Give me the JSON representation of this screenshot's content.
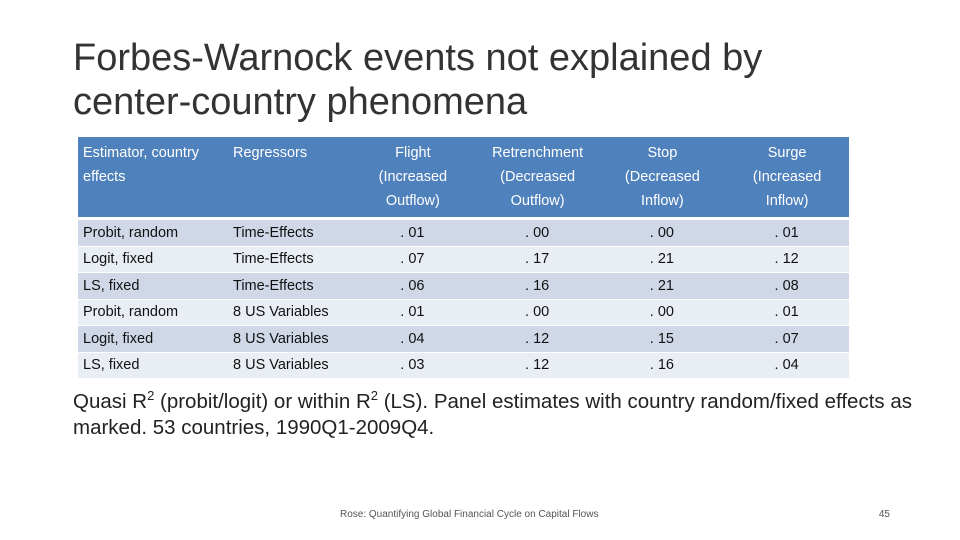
{
  "slide": {
    "title_line1": "Forbes-Warnock events not explained by",
    "title_line2": "center-country phenomena",
    "footer": "Rose: Quantifying Global Financial Cycle on Capital Flows",
    "page_number": "45"
  },
  "table": {
    "headers": [
      {
        "line1": "Estimator, country",
        "line2": "effects",
        "line3": ""
      },
      {
        "line1": "Regressors",
        "line2": "",
        "line3": ""
      },
      {
        "line1": "Flight",
        "line2": "(Increased",
        "line3": "Outflow)"
      },
      {
        "line1": "Retrenchment",
        "line2": "(Decreased",
        "line3": "Outflow)"
      },
      {
        "line1": "Stop",
        "line2": "(Decreased",
        "line3": "Inflow)"
      },
      {
        "line1": "Surge",
        "line2": "(Increased",
        "line3": "Inflow)"
      }
    ],
    "rows": [
      {
        "estimator": "Probit, random",
        "regressors": "Time-Effects",
        "flight": ". 01",
        "retrenchment": ". 00",
        "stop": ". 00",
        "surge": ". 01"
      },
      {
        "estimator": "Logit, fixed",
        "regressors": "Time-Effects",
        "flight": ". 07",
        "retrenchment": ". 17",
        "stop": ". 21",
        "surge": ". 12"
      },
      {
        "estimator": "LS, fixed",
        "regressors": "Time-Effects",
        "flight": ". 06",
        "retrenchment": ". 16",
        "stop": ". 21",
        "surge": ". 08"
      },
      {
        "estimator": "Probit, random",
        "regressors": "8 US Variables",
        "flight": ". 01",
        "retrenchment": ". 00",
        "stop": ". 00",
        "surge": ". 01"
      },
      {
        "estimator": "Logit, fixed",
        "regressors": "8 US Variables",
        "flight": ". 04",
        "retrenchment": ". 12",
        "stop": ". 15",
        "surge": ". 07"
      },
      {
        "estimator": "LS, fixed",
        "regressors": "8 US Variables",
        "flight": ". 03",
        "retrenchment": ". 12",
        "stop": ". 16",
        "surge": ". 04"
      }
    ]
  },
  "note": {
    "part1": "Quasi R",
    "sup1": "2",
    "part2": " (probit/logit) or within R",
    "sup2": "2",
    "part3": " (LS). Panel estimates with country random/fixed effects as marked. 53 countries, 1990Q1-2009Q4."
  },
  "colors": {
    "header_bg": "#4f81bd",
    "row_odd_bg": "#d0d8e8",
    "row_even_bg": "#e9edf4"
  }
}
